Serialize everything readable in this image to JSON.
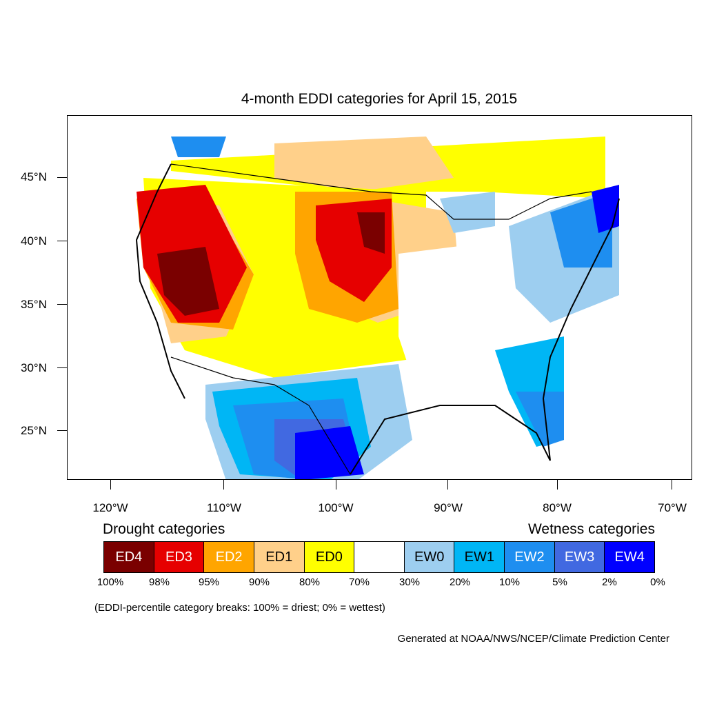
{
  "title": "4-month EDDI categories for April 15, 2015",
  "axes": {
    "lat_labels": [
      "45°N",
      "40°N",
      "35°N",
      "30°N",
      "25°N"
    ],
    "lon_labels": [
      "120°W",
      "110°W",
      "100°W",
      "90°W",
      "80°W",
      "70°W"
    ]
  },
  "legend": {
    "drought_title": "Drought categories",
    "wetness_title": "Wetness categories",
    "categories": [
      {
        "label": "ED4",
        "color": "#7a0000",
        "text_color": "#ffffff"
      },
      {
        "label": "ED3",
        "color": "#e60000",
        "text_color": "#ffffff"
      },
      {
        "label": "ED2",
        "color": "#ffa500",
        "text_color": "#ffffff"
      },
      {
        "label": "ED1",
        "color": "#ffd08a",
        "text_color": "#000000"
      },
      {
        "label": "ED0",
        "color": "#ffff00",
        "text_color": "#000000"
      },
      {
        "label": "",
        "color": "#ffffff",
        "text_color": "#000000"
      },
      {
        "label": "EW0",
        "color": "#9dcef0",
        "text_color": "#000000"
      },
      {
        "label": "EW1",
        "color": "#00b6f5",
        "text_color": "#000000"
      },
      {
        "label": "EW2",
        "color": "#1e8ef0",
        "text_color": "#ffffff"
      },
      {
        "label": "EW3",
        "color": "#4169e1",
        "text_color": "#ffffff"
      },
      {
        "label": "EW4",
        "color": "#0000ff",
        "text_color": "#ffffff"
      }
    ],
    "percent_labels": [
      "100%",
      "98%",
      "95%",
      "90%",
      "80%",
      "70%",
      "30%",
      "20%",
      "10%",
      "5%",
      "2%",
      "0%"
    ]
  },
  "breaks_note": "(EDDI-percentile category breaks: 100% = driest; 0% = wettest)",
  "credit": "Generated at NOAA/NWS/NCEP/Climate Prediction Center"
}
